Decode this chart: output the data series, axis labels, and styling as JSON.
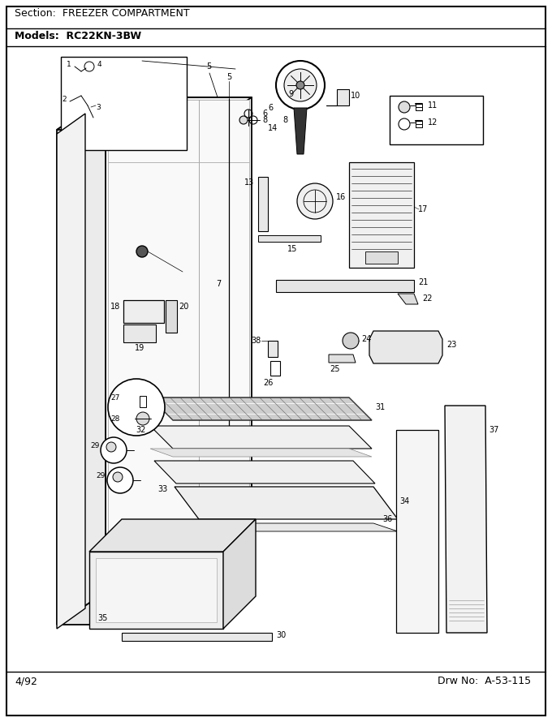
{
  "title_section": "Section:  FREEZER COMPARTMENT",
  "title_model": "Models:  RC22KN-3BW",
  "footer_left": "4/92",
  "footer_right": "Drw No:  A-53-115",
  "bg_color": "#ffffff",
  "border_color": "#000000",
  "text_color": "#000000",
  "fig_width": 6.8,
  "fig_height": 8.9,
  "dpi": 100
}
